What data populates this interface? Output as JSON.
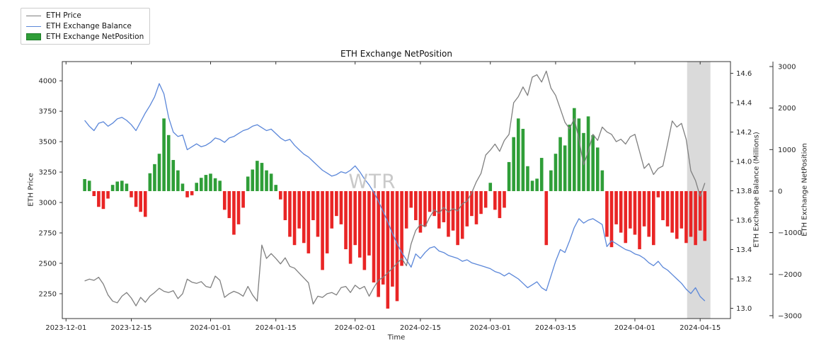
{
  "figure": {
    "title": "ETH Exchange NetPosition",
    "watermark": "WTR",
    "xlabel": "Time",
    "ylabel_left": "ETH Price",
    "ylabel_right_balance": "ETH Exchange Balance (Millions)",
    "ylabel_right_netposition": "ETH Exchange NetPosition"
  },
  "legend": {
    "position": "top-left",
    "entries": [
      {
        "label": "ETH Price",
        "swatch": "line",
        "color": "#7f7f7f"
      },
      {
        "label": "ETH Exchange Balance",
        "swatch": "line",
        "color": "#5b87d9"
      },
      {
        "label": "ETH Exchange NetPosition",
        "swatch": "patch",
        "color": "#2f9e38"
      }
    ]
  },
  "chart_data": {
    "type": "combo",
    "title": "ETH Exchange NetPosition",
    "xlabel": "Time",
    "grid": false,
    "x_start_date": "2023-12-05",
    "x_unit": "days_since_start",
    "x_range": [
      -4.8,
      138.5
    ],
    "x_ticks": [
      {
        "label": "2023-12-01",
        "i": -4
      },
      {
        "label": "2023-12-15",
        "i": 10
      },
      {
        "label": "2024-01-01",
        "i": 27
      },
      {
        "label": "2024-01-15",
        "i": 41
      },
      {
        "label": "2024-02-01",
        "i": 58
      },
      {
        "label": "2024-02-15",
        "i": 72
      },
      {
        "label": "2024-03-01",
        "i": 87
      },
      {
        "label": "2024-03-15",
        "i": 101
      },
      {
        "label": "2024-04-01",
        "i": 118
      },
      {
        "label": "2024-04-15",
        "i": 132
      }
    ],
    "highlight_span": {
      "from_i": 129.2,
      "to_i": 134.2,
      "color": "#dadada"
    },
    "watermark": "WTR",
    "axes": {
      "price": {
        "label": "ETH Price",
        "side": "left",
        "range": [
          2046,
          4158
        ],
        "ticks": [
          2250,
          2500,
          2750,
          3000,
          3250,
          3500,
          3750,
          4000
        ]
      },
      "balance": {
        "label": "ETH Exchange Balance (Millions)",
        "side": "right",
        "range": [
          12.93,
          14.68
        ],
        "ticks": [
          13.0,
          13.2,
          13.4,
          13.6,
          13.8,
          14.0,
          14.2,
          14.4,
          14.6
        ]
      },
      "netposition": {
        "label": "ETH Exchange NetPosition",
        "side": "right-offset",
        "range": [
          -3070,
          3120
        ],
        "ticks": [
          -3000,
          -2000,
          -1000,
          0,
          1000,
          2000,
          3000
        ]
      }
    },
    "series": [
      {
        "name": "ETH Price",
        "type": "line",
        "axis": "price",
        "color": "#7f7f7f",
        "values": [
          2355,
          2370,
          2360,
          2385,
          2330,
          2240,
          2190,
          2175,
          2230,
          2260,
          2215,
          2150,
          2220,
          2180,
          2230,
          2260,
          2295,
          2270,
          2260,
          2275,
          2210,
          2250,
          2370,
          2345,
          2335,
          2350,
          2310,
          2300,
          2395,
          2360,
          2220,
          2250,
          2270,
          2255,
          2230,
          2310,
          2240,
          2190,
          2650,
          2540,
          2580,
          2540,
          2495,
          2545,
          2475,
          2460,
          2420,
          2380,
          2340,
          2165,
          2230,
          2220,
          2250,
          2260,
          2240,
          2300,
          2310,
          2260,
          2320,
          2290,
          2310,
          2230,
          2300,
          2360,
          2385,
          2420,
          2460,
          2500,
          2540,
          2480,
          2660,
          2770,
          2820,
          2800,
          2880,
          2940,
          2910,
          2960,
          2920,
          2950,
          2930,
          2990,
          3010,
          3080,
          3170,
          3240,
          3390,
          3430,
          3480,
          3420,
          3510,
          3560,
          3820,
          3870,
          3950,
          3880,
          4030,
          4050,
          3990,
          4080,
          3940,
          3880,
          3770,
          3660,
          3605,
          3690,
          3520,
          3310,
          3420,
          3560,
          3510,
          3620,
          3580,
          3560,
          3500,
          3520,
          3480,
          3540,
          3560,
          3420,
          3280,
          3320,
          3230,
          3280,
          3300,
          3480,
          3670,
          3620,
          3650,
          3520,
          3260,
          3180,
          3050,
          3160
        ]
      },
      {
        "name": "ETH Exchange Balance",
        "type": "line",
        "axis": "balance",
        "color": "#5b87d9",
        "values": [
          14.28,
          14.24,
          14.21,
          14.26,
          14.27,
          14.24,
          14.26,
          14.29,
          14.3,
          14.28,
          14.25,
          14.21,
          14.27,
          14.33,
          14.38,
          14.44,
          14.53,
          14.46,
          14.3,
          14.2,
          14.17,
          14.18,
          14.08,
          14.1,
          14.12,
          14.1,
          14.11,
          14.13,
          14.16,
          14.15,
          14.13,
          14.16,
          14.17,
          14.19,
          14.21,
          14.22,
          14.24,
          14.25,
          14.23,
          14.21,
          14.22,
          14.19,
          14.16,
          14.14,
          14.15,
          14.11,
          14.08,
          14.05,
          14.03,
          14.0,
          13.97,
          13.94,
          13.92,
          13.9,
          13.91,
          13.93,
          13.92,
          13.94,
          13.97,
          13.93,
          13.88,
          13.84,
          13.79,
          13.73,
          13.66,
          13.59,
          13.51,
          13.44,
          13.38,
          13.33,
          13.28,
          13.37,
          13.34,
          13.38,
          13.41,
          13.42,
          13.39,
          13.38,
          13.36,
          13.35,
          13.34,
          13.32,
          13.33,
          13.31,
          13.3,
          13.29,
          13.28,
          13.27,
          13.25,
          13.24,
          13.22,
          13.24,
          13.22,
          13.2,
          13.17,
          13.14,
          13.16,
          13.18,
          13.14,
          13.12,
          13.22,
          13.32,
          13.4,
          13.38,
          13.46,
          13.55,
          13.61,
          13.58,
          13.6,
          13.61,
          13.59,
          13.57,
          13.42,
          13.46,
          13.44,
          13.42,
          13.4,
          13.39,
          13.37,
          13.36,
          13.34,
          13.31,
          13.29,
          13.32,
          13.28,
          13.26,
          13.23,
          13.2,
          13.17,
          13.13,
          13.1,
          13.14,
          13.08,
          13.05
        ]
      },
      {
        "name": "ETH Exchange NetPosition",
        "type": "bar",
        "axis": "netposition",
        "color_positive": "#2f9e38",
        "color_negative": "#e92525",
        "values": [
          290,
          250,
          -120,
          -380,
          -430,
          -180,
          150,
          230,
          250,
          180,
          -150,
          -380,
          -500,
          -620,
          430,
          650,
          900,
          1750,
          1350,
          750,
          500,
          180,
          -150,
          -100,
          200,
          320,
          390,
          420,
          310,
          250,
          -450,
          -650,
          -1050,
          -800,
          -400,
          350,
          520,
          730,
          680,
          500,
          420,
          150,
          -200,
          -700,
          -1100,
          -1300,
          -900,
          -1250,
          -1500,
          -700,
          -1100,
          -1900,
          -1500,
          -900,
          -600,
          -800,
          -1400,
          -1750,
          -1300,
          -1600,
          -1900,
          -1550,
          -2200,
          -2550,
          -2250,
          -2830,
          -2300,
          -2650,
          -1800,
          -900,
          -400,
          -700,
          -1000,
          -850,
          -500,
          -600,
          -900,
          -750,
          -1100,
          -950,
          -1300,
          -1150,
          -850,
          -600,
          -800,
          -550,
          -400,
          200,
          -450,
          -650,
          -400,
          700,
          1300,
          1750,
          1500,
          600,
          250,
          300,
          800,
          -1300,
          500,
          900,
          1300,
          1100,
          1600,
          2000,
          1750,
          1400,
          1800,
          1350,
          1050,
          500,
          -1100,
          -1350,
          -800,
          -1000,
          -1250,
          -900,
          -1050,
          -1400,
          -850,
          -1100,
          -1300,
          -150,
          -700,
          -850,
          -1000,
          -1150,
          -900,
          -1250,
          -1100,
          -1300,
          -950,
          -1200
        ]
      }
    ],
    "legend_entries": [
      "ETH Price",
      "ETH Exchange Balance",
      "ETH Exchange NetPosition"
    ]
  },
  "colors": {
    "background": "#ffffff",
    "spine": "#333333",
    "tick_text": "#262626",
    "watermark": "#c9c9c9",
    "highlight_band": "#dadada"
  }
}
